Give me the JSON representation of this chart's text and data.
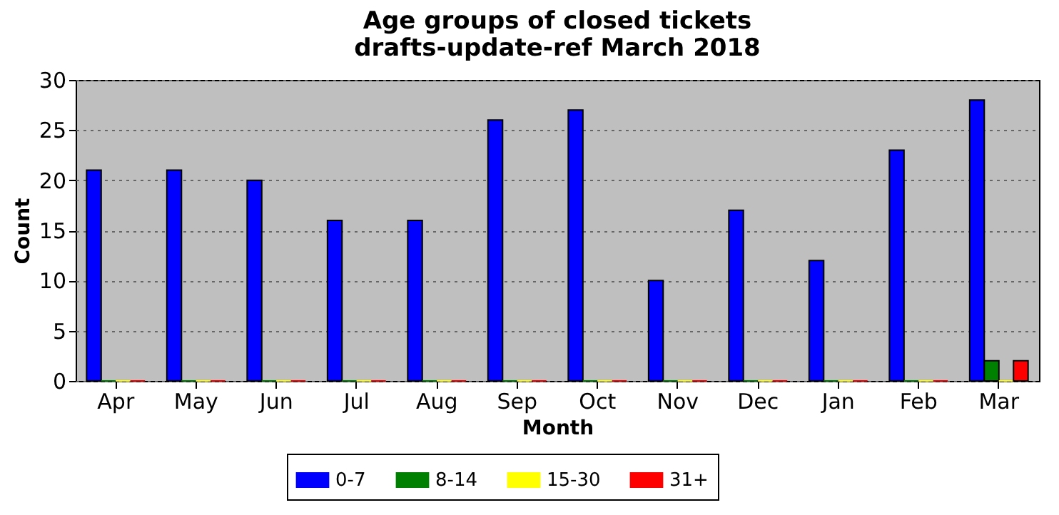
{
  "chart_data": {
    "type": "bar",
    "title": "Age groups of closed tickets\ndrafts-update-ref March 2018",
    "xlabel": "Month",
    "ylabel": "Count",
    "categories": [
      "Apr",
      "May",
      "Jun",
      "Jul",
      "Aug",
      "Sep",
      "Oct",
      "Nov",
      "Dec",
      "Jan",
      "Feb",
      "Mar"
    ],
    "series": [
      {
        "name": "0-7",
        "color": "#0000ff",
        "values": [
          21,
          21,
          20,
          16,
          16,
          26,
          27,
          10,
          17,
          12,
          23,
          28
        ]
      },
      {
        "name": "8-14",
        "color": "#008000",
        "values": [
          0,
          0,
          0,
          0,
          0,
          0,
          0,
          0,
          0,
          0,
          0,
          2
        ]
      },
      {
        "name": "15-30",
        "color": "#ffff00",
        "values": [
          0,
          0,
          0,
          0,
          0,
          0,
          0,
          0,
          0,
          0,
          0,
          0
        ]
      },
      {
        "name": "31+",
        "color": "#ff0000",
        "values": [
          0,
          0,
          0,
          0,
          0,
          0,
          0,
          0,
          0,
          0,
          0,
          2
        ]
      }
    ],
    "ylim": [
      0,
      30
    ],
    "yticks": [
      0,
      5,
      10,
      15,
      20,
      25,
      30
    ],
    "grid": "y",
    "legend": "bottom"
  }
}
